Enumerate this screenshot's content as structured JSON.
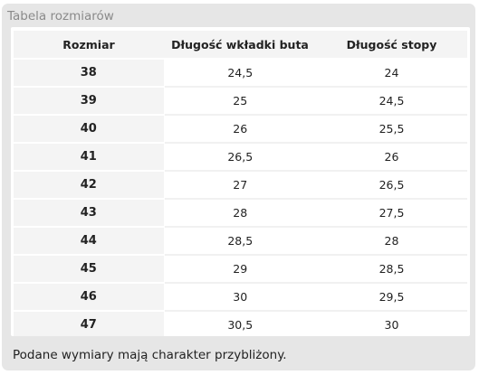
{
  "panel": {
    "title": "Tabela rozmiarów",
    "note": "Podane wymiary mają charakter przybliżony."
  },
  "table": {
    "headers": [
      "Rozmiar",
      "Długość wkładki buta",
      "Długość stopy"
    ],
    "rows": [
      [
        "38",
        "24,5",
        "24"
      ],
      [
        "39",
        "25",
        "24,5"
      ],
      [
        "40",
        "26",
        "25,5"
      ],
      [
        "41",
        "26,5",
        "26"
      ],
      [
        "42",
        "27",
        "26,5"
      ],
      [
        "43",
        "28",
        "27,5"
      ],
      [
        "44",
        "28,5",
        "28"
      ],
      [
        "45",
        "29",
        "28,5"
      ],
      [
        "46",
        "30",
        "29,5"
      ],
      [
        "47",
        "30,5",
        "30"
      ]
    ]
  },
  "colors": {
    "panel_bg": "#e6e6e6",
    "title_text": "#8a8a8a",
    "header_bg": "#f4f4f4",
    "text": "#222222"
  }
}
